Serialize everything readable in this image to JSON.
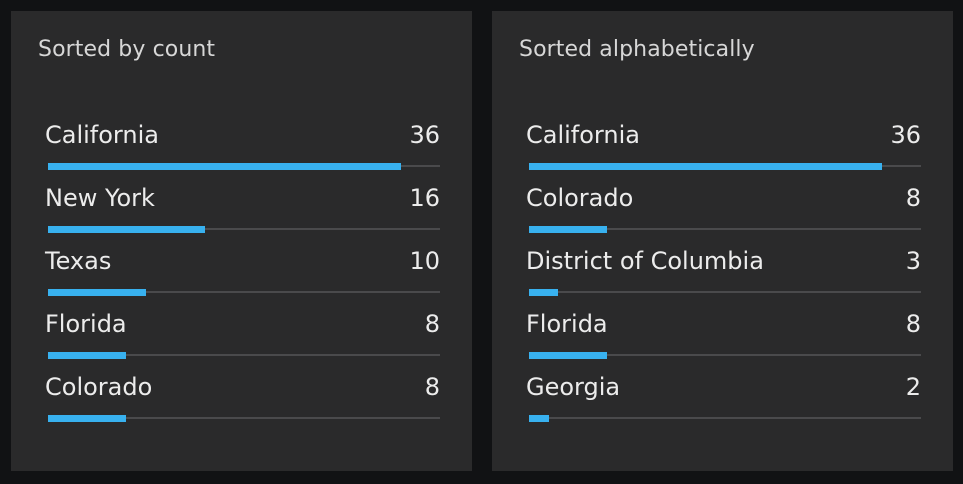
{
  "chart_data": [
    {
      "type": "bar",
      "title": "Sorted by count",
      "max": 36,
      "categories": [
        "California",
        "New York",
        "Texas",
        "Florida",
        "Colorado"
      ],
      "values": [
        36,
        16,
        10,
        8,
        8
      ],
      "bar_color": "#38b1ef"
    },
    {
      "type": "bar",
      "title": "Sorted alphabetically",
      "max": 36,
      "categories": [
        "California",
        "Colorado",
        "District of Columbia",
        "Florida",
        "Georgia"
      ],
      "values": [
        36,
        8,
        3,
        8,
        2
      ],
      "bar_color": "#38b1ef"
    }
  ]
}
